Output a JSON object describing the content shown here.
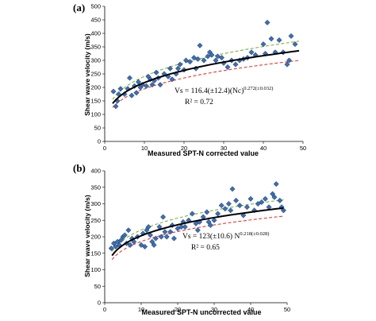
{
  "colors": {
    "marker_fill": "#3b6fb6",
    "marker_stroke": "#1f2f4f",
    "fit": "#000000",
    "upper_bound": "#7cb342",
    "lower_bound": "#e53935"
  },
  "chart_data": [
    {
      "type": "scatter",
      "panel_label": "(a)",
      "xlabel": "Measured SPT-N corrected value",
      "ylabel": "Shear wave velocity (m/s)",
      "xlim": [
        0,
        50
      ],
      "ylim": [
        0,
        500
      ],
      "x_ticks": [
        0,
        10,
        20,
        30,
        40,
        50
      ],
      "y_ticks": [
        0,
        50,
        100,
        150,
        200,
        250,
        300,
        350,
        400,
        450,
        500
      ],
      "equation": {
        "main": "Vs = 116.4(±12.4)(Nc)",
        "exp": "0.272(±0.032)"
      },
      "r2_text": "R² = 0.72",
      "fit": {
        "a": 116.4,
        "b": 0.272,
        "upper_a": 128.8,
        "lower_a": 104.0
      },
      "points": [
        [
          2.2,
          185
        ],
        [
          2.8,
          130
        ],
        [
          3.2,
          150
        ],
        [
          3.5,
          175
        ],
        [
          4,
          195
        ],
        [
          5,
          175
        ],
        [
          5.8,
          195
        ],
        [
          6.3,
          235
        ],
        [
          6.8,
          170
        ],
        [
          7.5,
          205
        ],
        [
          8,
          180
        ],
        [
          8.5,
          220
        ],
        [
          9,
          200
        ],
        [
          9.5,
          210
        ],
        [
          10.5,
          205
        ],
        [
          11,
          240
        ],
        [
          11.5,
          230
        ],
        [
          12,
          210
        ],
        [
          12.5,
          225
        ],
        [
          13,
          255
        ],
        [
          13.5,
          235
        ],
        [
          14,
          210
        ],
        [
          15,
          250
        ],
        [
          16,
          240
        ],
        [
          16.5,
          270
        ],
        [
          17,
          230
        ],
        [
          18,
          250
        ],
        [
          18.5,
          270
        ],
        [
          19,
          285
        ],
        [
          20,
          265
        ],
        [
          20.5,
          300
        ],
        [
          21.5,
          295
        ],
        [
          22.5,
          310
        ],
        [
          23,
          270
        ],
        [
          23.5,
          305
        ],
        [
          24,
          355
        ],
        [
          25,
          300
        ],
        [
          26,
          315
        ],
        [
          26.5,
          330
        ],
        [
          27,
          320
        ],
        [
          28,
          300
        ],
        [
          28.5,
          315
        ],
        [
          29.5,
          310
        ],
        [
          30,
          290
        ],
        [
          31,
          275
        ],
        [
          32,
          300
        ],
        [
          33,
          285
        ],
        [
          34,
          300
        ],
        [
          35,
          305
        ],
        [
          36,
          310
        ],
        [
          37,
          330
        ],
        [
          38,
          320
        ],
        [
          40,
          360
        ],
        [
          40.5,
          325
        ],
        [
          41,
          440
        ],
        [
          42,
          380
        ],
        [
          43,
          330
        ],
        [
          44,
          375
        ],
        [
          45,
          330
        ],
        [
          46,
          285
        ],
        [
          46.5,
          300
        ],
        [
          47,
          390
        ],
        [
          48,
          360
        ]
      ]
    },
    {
      "type": "scatter",
      "panel_label": "(b)",
      "xlabel": "Measured SPT-N uncorrected value",
      "ylabel": "Shear wave velocity (m/s)",
      "xlim": [
        0,
        50
      ],
      "ylim": [
        0,
        400
      ],
      "x_ticks": [
        0,
        10,
        20,
        30,
        40,
        50
      ],
      "y_ticks": [
        0,
        50,
        100,
        150,
        200,
        250,
        300,
        350,
        400
      ],
      "equation": {
        "main": "Vs = 123(±10.6) N",
        "exp": "0.218(±0.028)"
      },
      "r2_text": "R² = 0.65",
      "fit": {
        "a": 123.0,
        "b": 0.218,
        "upper_a": 133.6,
        "lower_a": 112.4
      },
      "points": [
        [
          1.8,
          165
        ],
        [
          2.5,
          180
        ],
        [
          3,
          170
        ],
        [
          3.5,
          185
        ],
        [
          4,
          175
        ],
        [
          4.5,
          190
        ],
        [
          5,
          200
        ],
        [
          5.5,
          205
        ],
        [
          6,
          180
        ],
        [
          6.5,
          220
        ],
        [
          7,
          175
        ],
        [
          7.5,
          195
        ],
        [
          8,
          185
        ],
        [
          9,
          200
        ],
        [
          10,
          175
        ],
        [
          10.5,
          210
        ],
        [
          11,
          170
        ],
        [
          11.5,
          220
        ],
        [
          12,
          230
        ],
        [
          12.5,
          205
        ],
        [
          13,
          185
        ],
        [
          13.5,
          175
        ],
        [
          14,
          195
        ],
        [
          15,
          230
        ],
        [
          15.5,
          200
        ],
        [
          16,
          260
        ],
        [
          16.5,
          215
        ],
        [
          17,
          200
        ],
        [
          18,
          215
        ],
        [
          18.5,
          235
        ],
        [
          19,
          195
        ],
        [
          20,
          225
        ],
        [
          21,
          230
        ],
        [
          21.5,
          245
        ],
        [
          22,
          230
        ],
        [
          23,
          250
        ],
        [
          24,
          270
        ],
        [
          25,
          240
        ],
        [
          25.5,
          220
        ],
        [
          26,
          245
        ],
        [
          27,
          260
        ],
        [
          28,
          275
        ],
        [
          28.5,
          245
        ],
        [
          29,
          235
        ],
        [
          30,
          250
        ],
        [
          31,
          270
        ],
        [
          32,
          295
        ],
        [
          33,
          285
        ],
        [
          34,
          300
        ],
        [
          34.5,
          280
        ],
        [
          35,
          345
        ],
        [
          36,
          310
        ],
        [
          37,
          295
        ],
        [
          38,
          265
        ],
        [
          39,
          290
        ],
        [
          40,
          315
        ],
        [
          41,
          280
        ],
        [
          42,
          300
        ],
        [
          43,
          305
        ],
        [
          44,
          315
        ],
        [
          45,
          290
        ],
        [
          46,
          330
        ],
        [
          46.5,
          320
        ],
        [
          47,
          360
        ],
        [
          48,
          310
        ],
        [
          48.5,
          290
        ],
        [
          49,
          280
        ]
      ]
    }
  ]
}
